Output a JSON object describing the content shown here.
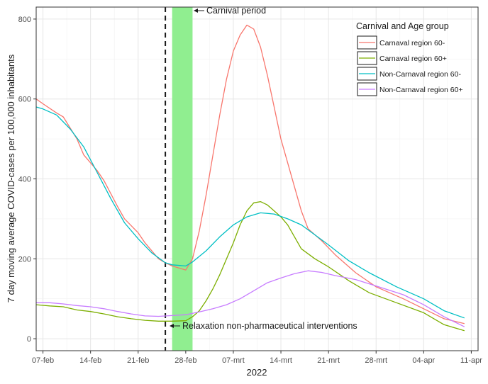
{
  "chart_data": {
    "type": "line",
    "title": "",
    "xlabel": "2022",
    "ylabel": "7 day moving average COVID-cases per 100,000 inhabitants",
    "x_ticks": [
      {
        "date": "2022-02-07",
        "label": "07-feb"
      },
      {
        "date": "2022-02-14",
        "label": "14-feb"
      },
      {
        "date": "2022-02-21",
        "label": "21-feb"
      },
      {
        "date": "2022-02-28",
        "label": "28-feb"
      },
      {
        "date": "2022-03-07",
        "label": "07-mrt"
      },
      {
        "date": "2022-03-14",
        "label": "14-mrt"
      },
      {
        "date": "2022-03-21",
        "label": "21-mrt"
      },
      {
        "date": "2022-03-28",
        "label": "28-mrt"
      },
      {
        "date": "2022-04-04",
        "label": "04-apr"
      },
      {
        "date": "2022-04-11",
        "label": "11-apr"
      }
    ],
    "y_ticks": [
      0,
      200,
      400,
      600,
      800
    ],
    "xlim": [
      "2022-02-06",
      "2022-04-12"
    ],
    "ylim": [
      -30,
      830
    ],
    "grid": true,
    "legend": {
      "title": "Carnival and Age group",
      "position": "top-right"
    },
    "series": [
      {
        "name": "Carnaval region 60-",
        "color": "#F8766D",
        "points": [
          [
            "2022-02-06",
            600
          ],
          [
            "2022-02-07",
            588
          ],
          [
            "2022-02-09",
            565
          ],
          [
            "2022-02-10",
            555
          ],
          [
            "2022-02-12",
            500
          ],
          [
            "2022-02-13",
            460
          ],
          [
            "2022-02-15",
            420
          ],
          [
            "2022-02-16",
            395
          ],
          [
            "2022-02-18",
            330
          ],
          [
            "2022-02-19",
            300
          ],
          [
            "2022-02-21",
            265
          ],
          [
            "2022-02-22",
            240
          ],
          [
            "2022-02-24",
            200
          ],
          [
            "2022-02-25",
            190
          ],
          [
            "2022-02-26",
            182
          ],
          [
            "2022-02-27",
            177
          ],
          [
            "2022-02-28",
            172
          ],
          [
            "2022-03-01",
            200
          ],
          [
            "2022-03-02",
            270
          ],
          [
            "2022-03-03",
            360
          ],
          [
            "2022-03-04",
            460
          ],
          [
            "2022-03-05",
            560
          ],
          [
            "2022-03-06",
            650
          ],
          [
            "2022-03-07",
            720
          ],
          [
            "2022-03-08",
            760
          ],
          [
            "2022-03-09",
            785
          ],
          [
            "2022-03-10",
            775
          ],
          [
            "2022-03-11",
            730
          ],
          [
            "2022-03-12",
            660
          ],
          [
            "2022-03-13",
            580
          ],
          [
            "2022-03-14",
            500
          ],
          [
            "2022-03-15",
            440
          ],
          [
            "2022-03-16",
            380
          ],
          [
            "2022-03-17",
            320
          ],
          [
            "2022-03-18",
            275
          ],
          [
            "2022-03-20",
            245
          ],
          [
            "2022-03-22",
            210
          ],
          [
            "2022-03-25",
            165
          ],
          [
            "2022-03-28",
            130
          ],
          [
            "2022-04-01",
            100
          ],
          [
            "2022-04-04",
            75
          ],
          [
            "2022-04-07",
            50
          ],
          [
            "2022-04-10",
            38
          ]
        ]
      },
      {
        "name": "Carnaval region 60+",
        "color": "#7CAE00",
        "points": [
          [
            "2022-02-06",
            85
          ],
          [
            "2022-02-08",
            82
          ],
          [
            "2022-02-10",
            80
          ],
          [
            "2022-02-12",
            72
          ],
          [
            "2022-02-14",
            68
          ],
          [
            "2022-02-16",
            62
          ],
          [
            "2022-02-18",
            55
          ],
          [
            "2022-02-20",
            50
          ],
          [
            "2022-02-22",
            46
          ],
          [
            "2022-02-24",
            44
          ],
          [
            "2022-02-26",
            44
          ],
          [
            "2022-02-28",
            45
          ],
          [
            "2022-03-01",
            55
          ],
          [
            "2022-03-02",
            70
          ],
          [
            "2022-03-03",
            95
          ],
          [
            "2022-03-04",
            125
          ],
          [
            "2022-03-05",
            160
          ],
          [
            "2022-03-06",
            200
          ],
          [
            "2022-03-07",
            240
          ],
          [
            "2022-03-08",
            285
          ],
          [
            "2022-03-09",
            320
          ],
          [
            "2022-03-10",
            340
          ],
          [
            "2022-03-11",
            343
          ],
          [
            "2022-03-12",
            335
          ],
          [
            "2022-03-13",
            320
          ],
          [
            "2022-03-14",
            305
          ],
          [
            "2022-03-15",
            285
          ],
          [
            "2022-03-16",
            255
          ],
          [
            "2022-03-17",
            225
          ],
          [
            "2022-03-19",
            200
          ],
          [
            "2022-03-21",
            180
          ],
          [
            "2022-03-24",
            145
          ],
          [
            "2022-03-27",
            115
          ],
          [
            "2022-03-31",
            90
          ],
          [
            "2022-04-04",
            65
          ],
          [
            "2022-04-07",
            35
          ],
          [
            "2022-04-10",
            20
          ]
        ]
      },
      {
        "name": "Non-Carnaval region 60-",
        "color": "#00BFC4",
        "points": [
          [
            "2022-02-06",
            580
          ],
          [
            "2022-02-07",
            575
          ],
          [
            "2022-02-09",
            560
          ],
          [
            "2022-02-11",
            525
          ],
          [
            "2022-02-13",
            480
          ],
          [
            "2022-02-15",
            415
          ],
          [
            "2022-02-17",
            350
          ],
          [
            "2022-02-19",
            290
          ],
          [
            "2022-02-21",
            250
          ],
          [
            "2022-02-23",
            215
          ],
          [
            "2022-02-25",
            190
          ],
          [
            "2022-02-26",
            185
          ],
          [
            "2022-02-28",
            182
          ],
          [
            "2022-03-01",
            192
          ],
          [
            "2022-03-03",
            220
          ],
          [
            "2022-03-05",
            255
          ],
          [
            "2022-03-07",
            285
          ],
          [
            "2022-03-09",
            305
          ],
          [
            "2022-03-11",
            315
          ],
          [
            "2022-03-13",
            312
          ],
          [
            "2022-03-15",
            300
          ],
          [
            "2022-03-17",
            285
          ],
          [
            "2022-03-19",
            260
          ],
          [
            "2022-03-21",
            235
          ],
          [
            "2022-03-24",
            195
          ],
          [
            "2022-03-27",
            165
          ],
          [
            "2022-03-31",
            130
          ],
          [
            "2022-04-04",
            100
          ],
          [
            "2022-04-07",
            70
          ],
          [
            "2022-04-10",
            52
          ]
        ]
      },
      {
        "name": "Non-Carnaval region 60+",
        "color": "#C77CFF",
        "points": [
          [
            "2022-02-06",
            90
          ],
          [
            "2022-02-08",
            90
          ],
          [
            "2022-02-10",
            87
          ],
          [
            "2022-02-12",
            83
          ],
          [
            "2022-02-14",
            80
          ],
          [
            "2022-02-16",
            75
          ],
          [
            "2022-02-18",
            68
          ],
          [
            "2022-02-20",
            62
          ],
          [
            "2022-02-22",
            57
          ],
          [
            "2022-02-24",
            56
          ],
          [
            "2022-02-26",
            58
          ],
          [
            "2022-02-28",
            60
          ],
          [
            "2022-03-02",
            67
          ],
          [
            "2022-03-04",
            75
          ],
          [
            "2022-03-06",
            85
          ],
          [
            "2022-03-08",
            100
          ],
          [
            "2022-03-10",
            120
          ],
          [
            "2022-03-12",
            140
          ],
          [
            "2022-03-14",
            152
          ],
          [
            "2022-03-16",
            163
          ],
          [
            "2022-03-18",
            170
          ],
          [
            "2022-03-20",
            166
          ],
          [
            "2022-03-22",
            158
          ],
          [
            "2022-03-25",
            148
          ],
          [
            "2022-03-28",
            132
          ],
          [
            "2022-04-01",
            110
          ],
          [
            "2022-04-04",
            85
          ],
          [
            "2022-04-07",
            55
          ],
          [
            "2022-04-10",
            30
          ]
        ]
      }
    ],
    "carnival_period": {
      "start": "2022-02-26",
      "end": "2022-03-01",
      "color": "#90EE90",
      "label": "Carnival period"
    },
    "relaxation_date": "2022-02-25",
    "relaxation_label": "Relaxation non-pharmaceutical interventions"
  }
}
